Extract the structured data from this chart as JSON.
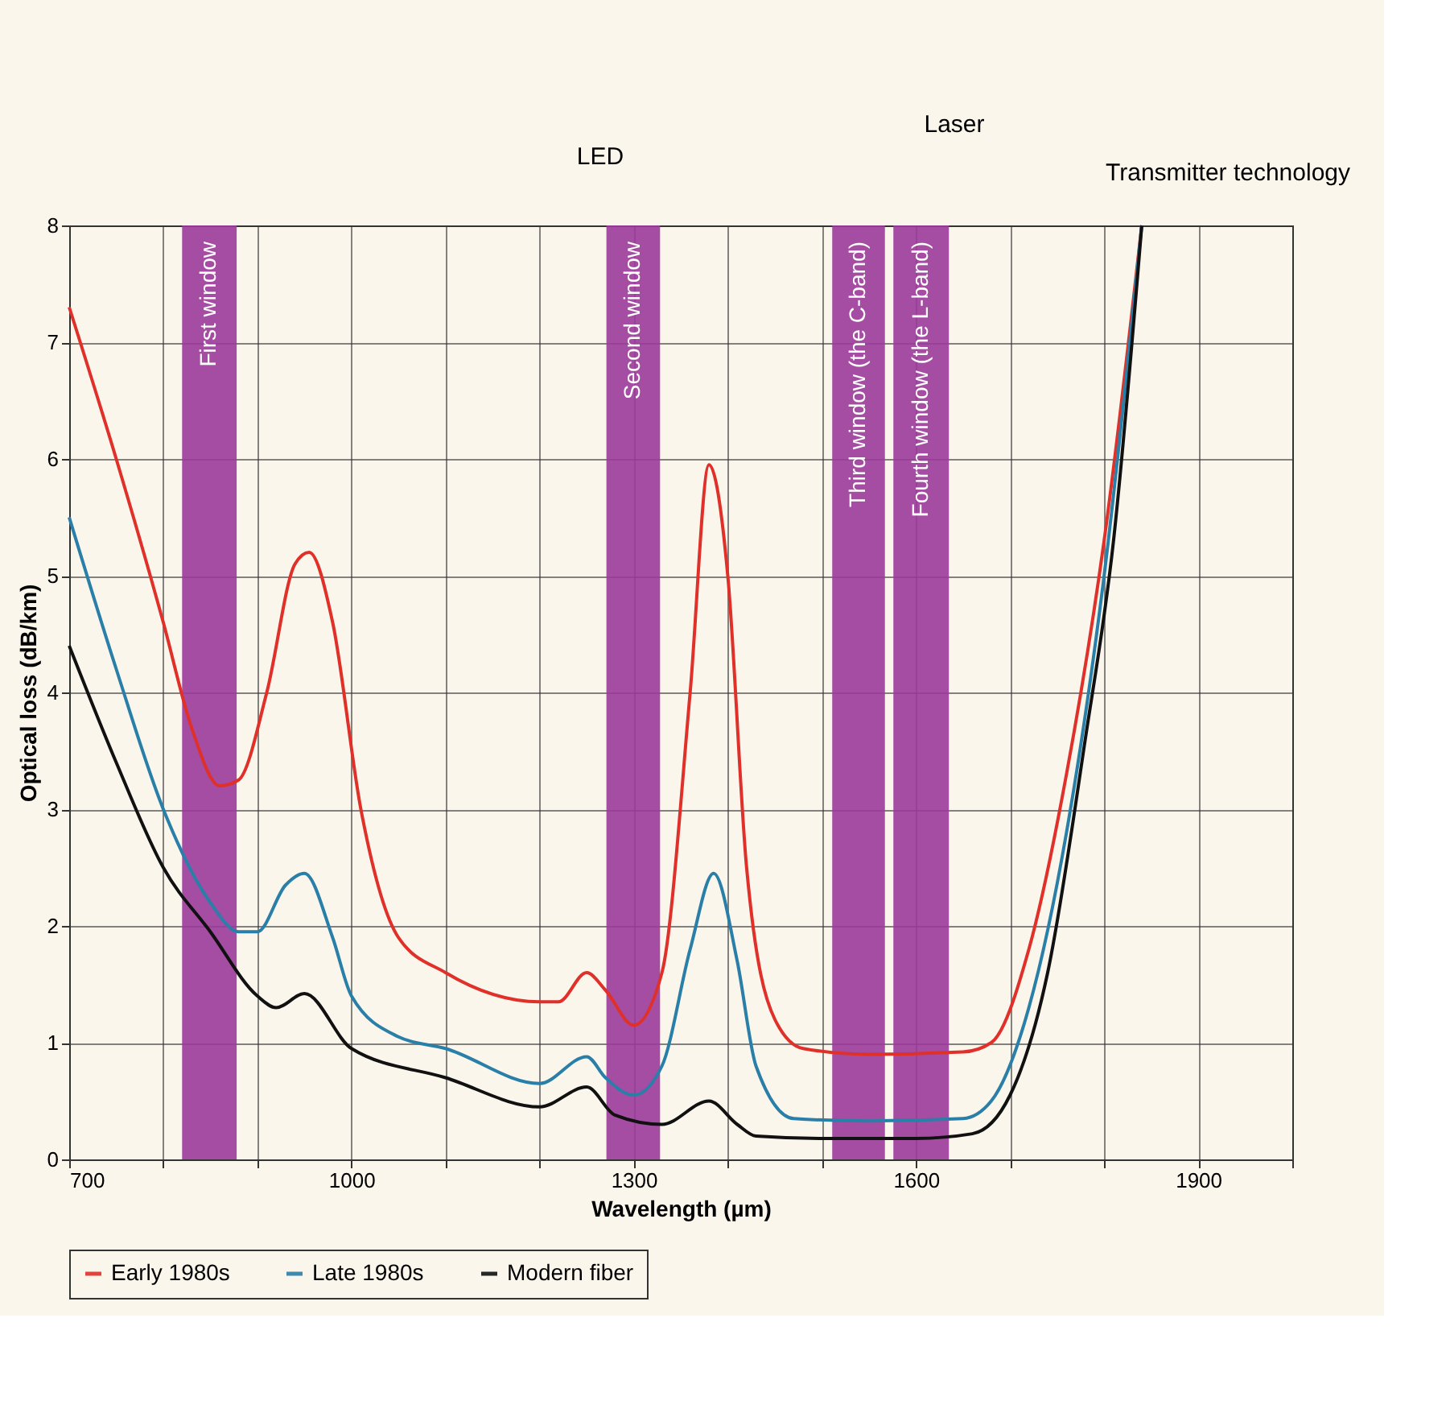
{
  "chart_data": {
    "type": "line",
    "xlabel": "Wavelength (µm)",
    "ylabel": "Optical loss (dB/km)",
    "xlim": [
      700,
      2000
    ],
    "ylim": [
      0,
      8
    ],
    "xticks": [
      700,
      {
        "value": 800,
        "label": null
      },
      {
        "value": 900,
        "label": null
      },
      1000,
      {
        "value": 1100,
        "label": null
      },
      {
        "value": 1200,
        "label": null
      },
      1300,
      {
        "value": 1400,
        "label": null
      },
      {
        "value": 1500,
        "label": null
      },
      1600,
      {
        "value": 1700,
        "label": null
      },
      {
        "value": 1800,
        "label": null
      },
      1900,
      {
        "value": 2000,
        "label": null
      }
    ],
    "yticks": [
      0,
      1,
      2,
      3,
      4,
      5,
      6,
      7,
      8
    ],
    "grid": true,
    "legend": "bottom",
    "marker": "none",
    "line_style": "solid",
    "series": [
      {
        "name": "Early 1980s",
        "color": "#e0302a",
        "x": [
          700,
          750,
          800,
          830,
          860,
          880,
          910,
          940,
          955,
          980,
          1010,
          1050,
          1100,
          1200,
          1220,
          1250,
          1270,
          1300,
          1330,
          1360,
          1380,
          1400,
          1420,
          1450,
          1480,
          1550,
          1650,
          1680,
          1720,
          1760,
          1800,
          1840
        ],
        "values": [
          7.3,
          6.0,
          4.6,
          3.7,
          3.2,
          3.25,
          4.0,
          5.1,
          5.2,
          4.6,
          3.0,
          1.9,
          1.6,
          1.35,
          1.35,
          1.6,
          1.45,
          1.15,
          1.6,
          4.0,
          5.95,
          5.0,
          2.5,
          1.2,
          0.95,
          0.9,
          0.92,
          1.0,
          1.8,
          3.3,
          5.3,
          8.0
        ]
      },
      {
        "name": "Late 1980s",
        "color": "#2a7fa8",
        "x": [
          700,
          750,
          800,
          850,
          880,
          900,
          930,
          950,
          980,
          1000,
          1050,
          1100,
          1200,
          1250,
          1270,
          1300,
          1330,
          1360,
          1385,
          1410,
          1430,
          1470,
          1550,
          1650,
          1680,
          1720,
          1760,
          1800,
          1840
        ],
        "values": [
          5.5,
          4.2,
          3.0,
          2.2,
          1.95,
          1.95,
          2.35,
          2.45,
          1.9,
          1.4,
          1.05,
          0.95,
          0.65,
          0.88,
          0.7,
          0.55,
          0.8,
          1.8,
          2.45,
          1.7,
          0.8,
          0.35,
          0.33,
          0.35,
          0.5,
          1.3,
          2.8,
          5.0,
          8.0
        ]
      },
      {
        "name": "Modern fiber",
        "color": "#111111",
        "x": [
          700,
          750,
          800,
          850,
          900,
          920,
          950,
          1000,
          1100,
          1200,
          1250,
          1280,
          1330,
          1380,
          1410,
          1430,
          1500,
          1600,
          1660,
          1700,
          1740,
          1780,
          1810,
          1840
        ],
        "values": [
          4.4,
          3.4,
          2.5,
          1.95,
          1.4,
          1.3,
          1.42,
          0.95,
          0.7,
          0.45,
          0.62,
          0.38,
          0.3,
          0.5,
          0.3,
          0.2,
          0.18,
          0.18,
          0.22,
          0.55,
          1.6,
          3.6,
          5.3,
          8.0
        ]
      }
    ],
    "bands": [
      {
        "axis": "x",
        "from": 820,
        "to": 878,
        "label": "First window",
        "color": "#9b3a9b"
      },
      {
        "axis": "x",
        "from": 1271,
        "to": 1328,
        "label": "Second window",
        "color": "#9b3a9b"
      },
      {
        "axis": "x",
        "from": 1511,
        "to": 1567,
        "label": "Third window (the C-band)",
        "color": "#9b3a9b"
      },
      {
        "axis": "x",
        "from": 1576,
        "to": 1635,
        "label": "Fourth window (the L-band)",
        "color": "#9b3a9b"
      }
    ],
    "annotations": [
      "LED",
      "Laser",
      "Transmitter technology"
    ]
  }
}
